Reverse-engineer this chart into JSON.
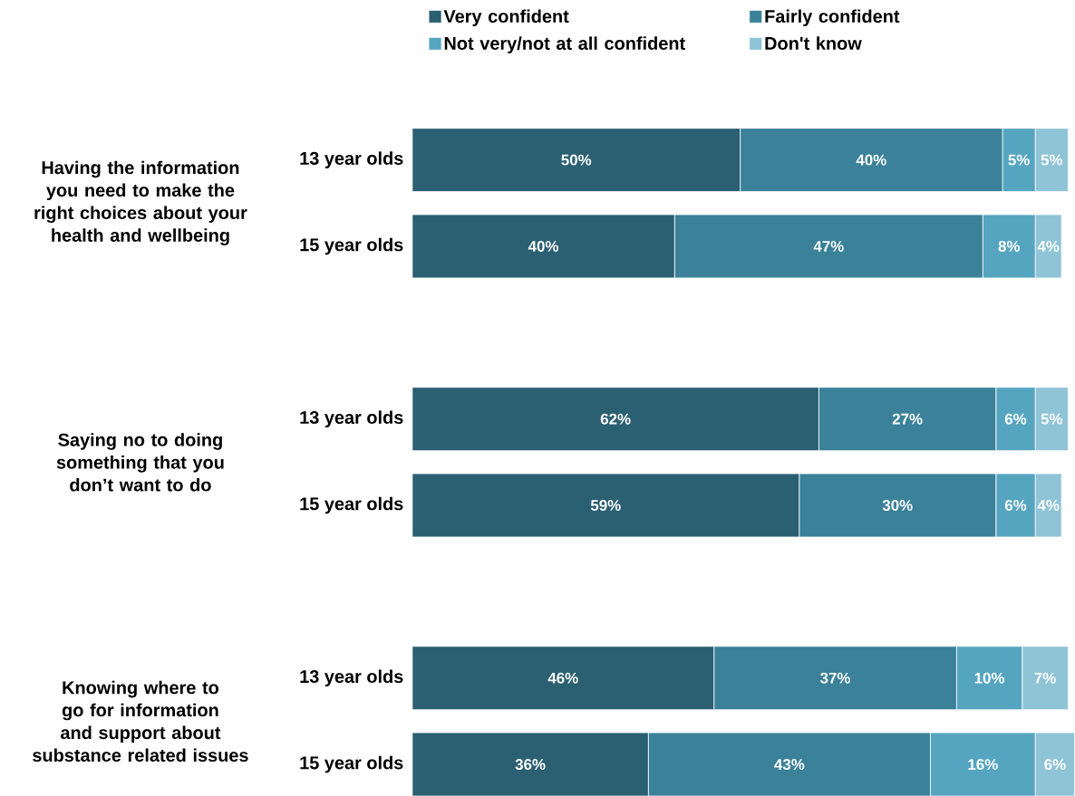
{
  "chart_data": {
    "type": "bar",
    "orientation": "horizontal",
    "stacked": true,
    "legend": "top",
    "categories": [
      "13 year olds",
      "15 year olds",
      null,
      "13 year olds",
      "15 year olds",
      null,
      "13 year olds",
      "15 year olds"
    ],
    "series": [
      {
        "name": "Very confident",
        "color": "#2b5f72",
        "values": [
          50,
          40,
          null,
          62,
          59,
          null,
          46,
          36
        ],
        "value_labels": [
          "50%",
          "40%",
          null,
          "62%",
          "59%",
          null,
          "46%",
          "36%"
        ]
      },
      {
        "name": "Fairly confident",
        "color": "#3a8199",
        "values": [
          40,
          47,
          null,
          27,
          30,
          null,
          37,
          43
        ],
        "value_labels": [
          "40%",
          "47%",
          null,
          "27%",
          "30%",
          null,
          "37%",
          "43%"
        ]
      },
      {
        "name": "Not very/not at all confident",
        "color": "#55a5c0",
        "values": [
          5,
          8,
          null,
          6,
          6,
          null,
          10,
          16
        ],
        "value_labels": [
          "5%",
          "8%",
          null,
          "6%",
          "6%",
          null,
          "10%",
          "16%"
        ]
      },
      {
        "name": "Don't know",
        "color": "#8fc3d6",
        "values": [
          5,
          4,
          null,
          5,
          4,
          null,
          7,
          6
        ],
        "value_labels": [
          "5%",
          "4%",
          null,
          "5%",
          "4%",
          null,
          "7%",
          "6%"
        ]
      }
    ],
    "annotations": [
      "Having the information you need to make the right choices about your health and wellbeing",
      "Saying no to doing something that you don’t want to do",
      "Knowing where to go for information and support about substance related issues"
    ]
  }
}
